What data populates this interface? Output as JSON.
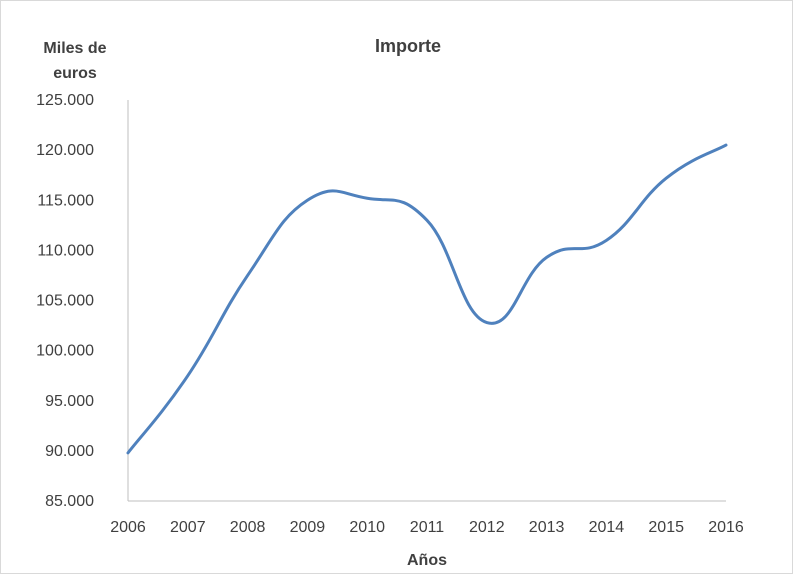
{
  "chart_data": {
    "type": "line",
    "title": "Importe",
    "xlabel": "Años",
    "ylabel": "Miles de euros",
    "categories": [
      "2006",
      "2007",
      "2008",
      "2009",
      "2010",
      "2011",
      "2012",
      "2013",
      "2014",
      "2015",
      "2016"
    ],
    "y_tick_labels": [
      "85.000",
      "90.000",
      "95.000",
      "100.000",
      "105.000",
      "110.000",
      "115.000",
      "120.000",
      "125.000"
    ],
    "ylim": [
      85000,
      125000
    ],
    "series": [
      {
        "values": [
          89800,
          97500,
          107500,
          115000,
          115200,
          113000,
          102800,
          109300,
          111000,
          117200,
          120500
        ],
        "color": "#4f81bd",
        "smooth": true
      }
    ],
    "grid": false,
    "legend": "none"
  }
}
